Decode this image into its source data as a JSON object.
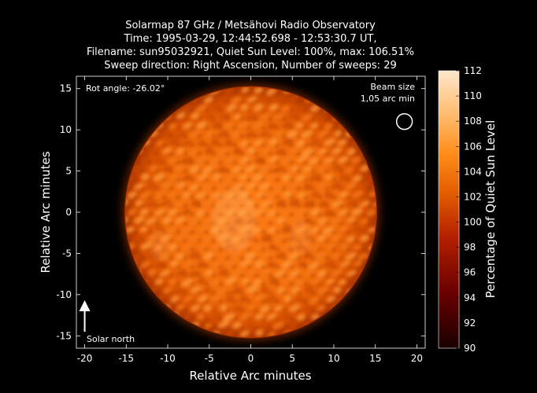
{
  "chart_data": {
    "type": "heatmap",
    "title_lines": [
      "Solarmap 87 GHz / Metsähovi Radio Observatory",
      "Time: 1995-03-29, 12:44:52.698 - 12:53:30.7 UT,",
      "Filename: sun95032921, Quiet Sun Level: 100%, max: 106.51%",
      "Sweep direction: Right Ascension, Number of sweeps: 29"
    ],
    "xlabel": "Relative Arc minutes",
    "ylabel": "Relative Arc minutes",
    "xlim": [
      -21,
      21
    ],
    "ylim": [
      -16.5,
      16.5
    ],
    "xticks": [
      -20,
      -15,
      -10,
      -5,
      0,
      5,
      10,
      15,
      20
    ],
    "yticks": [
      -15,
      -10,
      -5,
      0,
      5,
      10,
      15
    ],
    "colorbar": {
      "label": "Percentage of Quiet Sun Level",
      "min": 90,
      "max": 112,
      "ticks": [
        90,
        92,
        94,
        96,
        98,
        100,
        102,
        104,
        106,
        108,
        110,
        112
      ]
    },
    "disk": {
      "center": [
        0,
        0
      ],
      "radius": 15.2,
      "level_mean": 101,
      "level_max": 106.51,
      "sweeps": 29
    },
    "annotations": {
      "rot_angle": "Rot angle: -26.02°",
      "beam_size_line1": "Beam size",
      "beam_size_line2": "1,05 arc min",
      "beam_position": [
        18.5,
        11
      ],
      "beam_diameter": 1.05,
      "north_label": "Solar north",
      "north_arrow_position": [
        -20,
        -14.5
      ]
    }
  }
}
